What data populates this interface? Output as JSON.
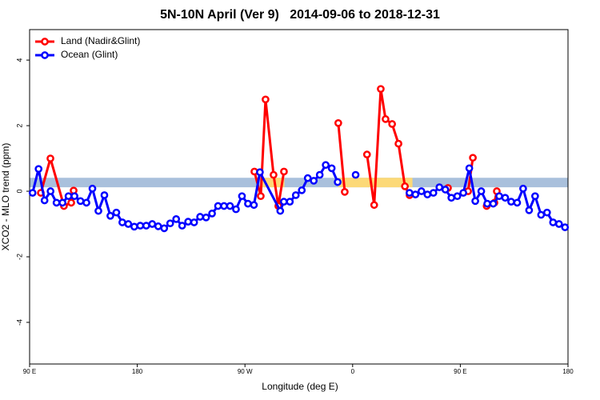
{
  "chart_data": {
    "type": "line",
    "title": "5N-10N April (Ver 9)   2014-09-06 to 2018-12-31",
    "xlabel": "Longitude (deg E)",
    "ylabel": "XCO2 - MLO trend (ppm)",
    "xlim": [
      90,
      540
    ],
    "xticks": [
      {
        "value": 90,
        "label": "90 E"
      },
      180,
      {
        "value": 270,
        "label": "90 W"
      },
      {
        "value": 360,
        "label": "0"
      },
      {
        "value": 450,
        "label": "90 E"
      },
      180
    ],
    "ylim": [
      -5.27,
      4.93
    ],
    "yticks": [
      -4,
      -2,
      0,
      2,
      4
    ],
    "reference_band": [
      0.12,
      0.41
    ],
    "reference_band_color": "#a9c0dc",
    "highlight_spans": [
      [
        283,
        303
      ],
      [
        348,
        410
      ]
    ],
    "highlight_color": "#fcd977",
    "legend": "top-left",
    "series": [
      {
        "name": "Land (Nadir&Glint)",
        "color": "#ff0000",
        "x": [
          99.4,
          107.4,
          118.7,
          124.8,
          126.8,
          200,
          277.9,
          283.2,
          287.2,
          293.9,
          297.9,
          302.6,
          320,
          348,
          353.4,
          360,
          372,
          378,
          383.5,
          387.5,
          393,
          398.3,
          403.7,
          407.6,
          420,
          439.7,
          450,
          456.5,
          460.5,
          470,
          472,
          478.5,
          480.5
        ],
        "values": [
          -0.05,
          1.0,
          -0.45,
          -0.35,
          0.02,
          null,
          0.6,
          -0.15,
          2.8,
          0.5,
          -0.45,
          0.6,
          null,
          2.08,
          -0.02,
          null,
          1.12,
          -0.42,
          3.12,
          2.2,
          2.05,
          1.45,
          0.15,
          -0.12,
          null,
          0.1,
          null,
          0.0,
          1.02,
          null,
          -0.45,
          -0.35,
          0.0
        ]
      },
      {
        "name": "Ocean (Glint)",
        "color": "#0000ff",
        "x": [
          92.5,
          97.5,
          102.5,
          107.5,
          112.5,
          117.5,
          122.5,
          127.5,
          132.5,
          137.5,
          142.5,
          147.5,
          152.5,
          157.5,
          162.5,
          167.5,
          172.5,
          177.5,
          182.5,
          187.5,
          192.5,
          197.5,
          202.5,
          207.5,
          212.5,
          217.5,
          222.5,
          227.5,
          232.5,
          237.5,
          242.5,
          247.5,
          252.5,
          257.5,
          262.5,
          267.5,
          272.5,
          277.5,
          282.5,
          299.5,
          302.5,
          307.5,
          312.5,
          317.5,
          322.5,
          327.5,
          332.5,
          337.5,
          342.5,
          347.5,
          352.5,
          362.5,
          380,
          407.5,
          412.5,
          417.5,
          422.5,
          427.5,
          432.5,
          437.5,
          442.5,
          447.5,
          452.5,
          457.5,
          462.5,
          467.5,
          472.5,
          477.5,
          482.5,
          487.5,
          492.5,
          497.5,
          502.5,
          507.5,
          512.5,
          517.5,
          522.5,
          527.5,
          532.5,
          537.5
        ],
        "values": [
          -0.05,
          0.68,
          -0.28,
          0.0,
          -0.35,
          -0.35,
          -0.15,
          -0.15,
          -0.3,
          -0.35,
          0.08,
          -0.6,
          -0.12,
          -0.75,
          -0.65,
          -0.95,
          -1.0,
          -1.08,
          -1.05,
          -1.05,
          -1.0,
          -1.07,
          -1.13,
          -0.98,
          -0.85,
          -1.05,
          -0.93,
          -0.95,
          -0.78,
          -0.8,
          -0.68,
          -0.45,
          -0.45,
          -0.45,
          -0.55,
          -0.15,
          -0.38,
          -0.42,
          0.58,
          -0.6,
          -0.32,
          -0.32,
          -0.12,
          0.03,
          0.4,
          0.32,
          0.5,
          0.8,
          0.7,
          0.28,
          null,
          0.5,
          null,
          -0.05,
          -0.1,
          0.0,
          -0.1,
          -0.05,
          0.12,
          0.05,
          -0.2,
          -0.15,
          -0.05,
          0.7,
          -0.3,
          0.0,
          -0.38,
          -0.38,
          -0.15,
          -0.2,
          -0.32,
          -0.35,
          0.08,
          -0.58,
          -0.15,
          -0.72,
          -0.65,
          -0.95,
          -1.0,
          -1.1
        ]
      }
    ]
  }
}
